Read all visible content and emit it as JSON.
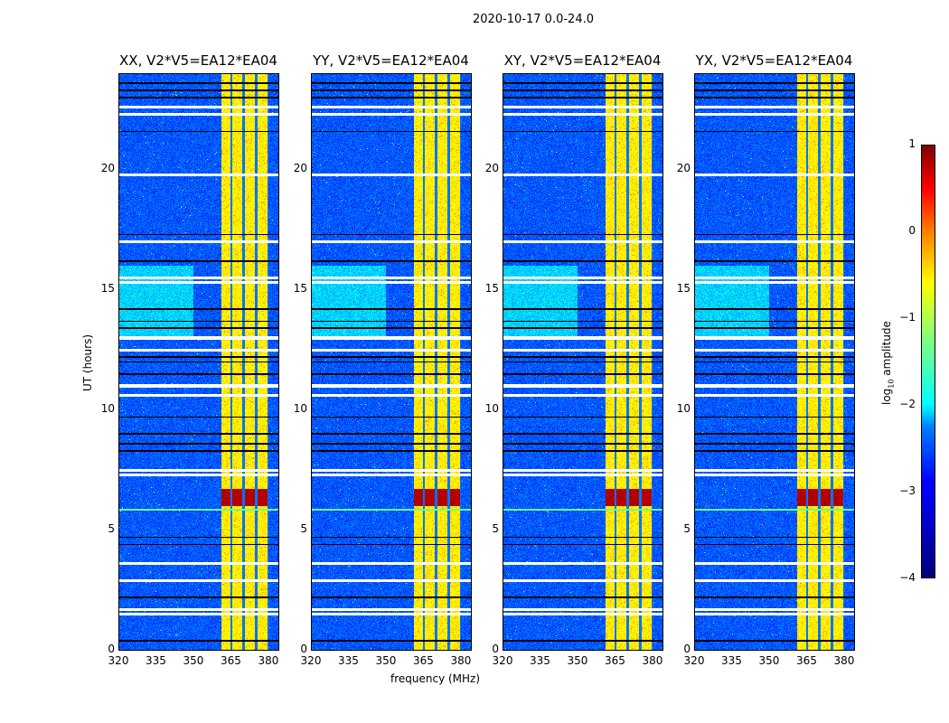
{
  "chart_data": {
    "type": "heatmap",
    "title": "2020-10-17 0.0-24.0",
    "xlabel": "frequency (MHz)",
    "ylabel": "UT (hours)",
    "xlim": [
      320,
      384
    ],
    "ylim": [
      0,
      24
    ],
    "xticks": [
      "320",
      "335",
      "350",
      "365",
      "380"
    ],
    "yticks": [
      "0",
      "5",
      "10",
      "15",
      "20"
    ],
    "panels": [
      {
        "title": "XX, V2*V5=EA12*EA04"
      },
      {
        "title": "YY, V2*V5=EA12*EA04"
      },
      {
        "title": "XY, V2*V5=EA12*EA04"
      },
      {
        "title": "YX, V2*V5=EA12*EA04"
      }
    ],
    "colorbar": {
      "label": "log10 amplitude",
      "label_main": "log",
      "label_sub": "10",
      "label_rest": " amplitude",
      "range": [
        -4,
        1
      ],
      "ticks": [
        "1",
        "0",
        "−1",
        "−2",
        "−3",
        "−4"
      ]
    },
    "colormap": "jet",
    "rfi_band_mhz": [
      361,
      380
    ],
    "flagged_rows_hours": [
      1.5,
      1.7,
      2.9,
      3.6,
      7.3,
      7.5,
      10.6,
      11.0,
      12.5,
      13.0,
      15.3,
      15.5,
      17.0,
      19.8,
      22.3,
      22.6
    ]
  }
}
